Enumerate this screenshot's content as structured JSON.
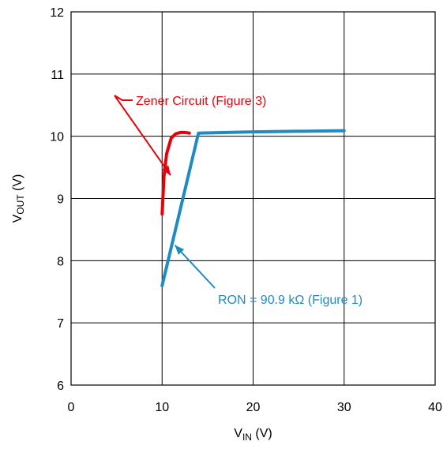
{
  "chart_data": {
    "type": "line",
    "xlabel": {
      "main": "V",
      "sub": "IN",
      "unit": " (V)"
    },
    "ylabel": {
      "main": "V",
      "sub": "OUT",
      "unit": " (V)"
    },
    "xlim": [
      0,
      40
    ],
    "ylim": [
      6,
      12
    ],
    "xticks": [
      "0",
      "10",
      "20",
      "30",
      "40"
    ],
    "xtick_values": [
      0,
      10,
      20,
      30,
      40
    ],
    "yticks": [
      "6",
      "7",
      "8",
      "9",
      "10",
      "11",
      "12"
    ],
    "ytick_values": [
      6,
      7,
      8,
      9,
      10,
      11,
      12
    ],
    "grid": true,
    "series": [
      {
        "name": "Zener Circuit (Figure 3)",
        "color": "#e8000b",
        "x": [
          10.0,
          10.2,
          10.5,
          11.0,
          11.5,
          12.0,
          12.5,
          13.0
        ],
        "y": [
          8.75,
          9.35,
          9.72,
          9.97,
          10.04,
          10.06,
          10.06,
          10.05
        ]
      },
      {
        "name": "RON = 90.9 kΩ (Figure 1)",
        "color": "#1f8bc3",
        "x": [
          10.0,
          14.0,
          20.0,
          30.0
        ],
        "y": [
          7.6,
          10.05,
          10.07,
          10.09
        ]
      }
    ],
    "annotations": [
      {
        "text": "Zener Circuit (Figure 3)",
        "color": "#e8000b",
        "points_to": [
          10.5,
          9.6
        ]
      },
      {
        "text": "RON = 90.9 kΩ (Figure 1)",
        "color": "#1f8bc3",
        "points_to": [
          11.4,
          8.25
        ]
      }
    ]
  }
}
